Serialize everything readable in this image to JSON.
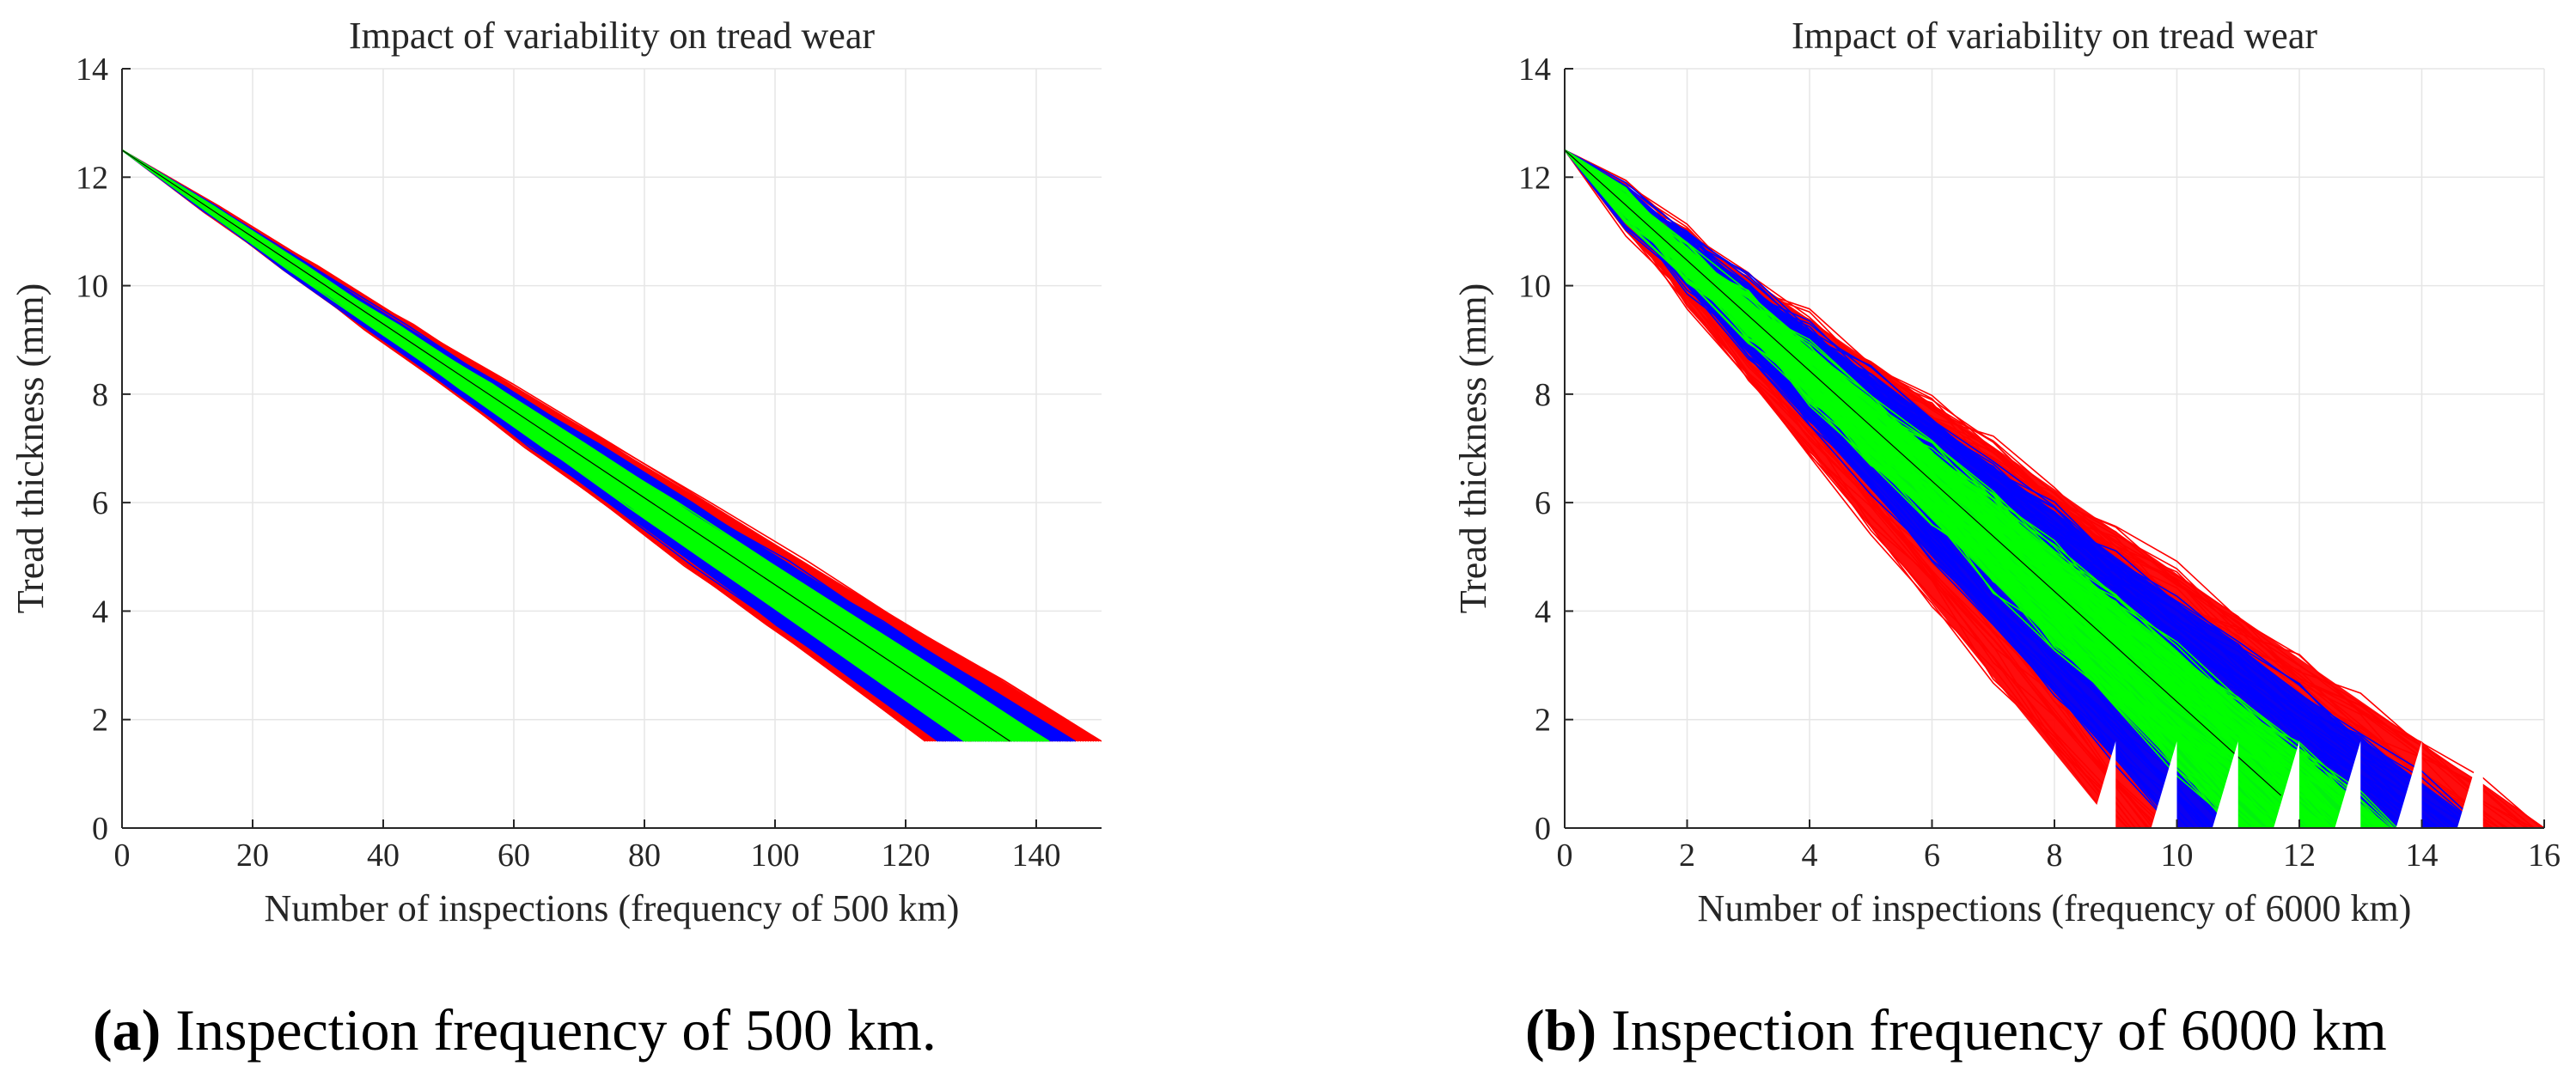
{
  "chart_data": [
    {
      "type": "line",
      "title": "Impact of variability on tread wear",
      "xlabel": "Number of inspections (frequency of 500 km)",
      "ylabel": "Tread thickness (mm)",
      "xlim": [
        0,
        150
      ],
      "ylim": [
        0,
        14
      ],
      "xticks": [
        0,
        20,
        40,
        60,
        80,
        100,
        120,
        140
      ],
      "yticks": [
        0,
        2,
        4,
        6,
        8,
        10,
        12,
        14
      ],
      "grid": true,
      "start_thickness": 12.5,
      "threshold": 1.6,
      "series": [
        {
          "name": "outer band",
          "color": "#ff0000",
          "x_end": [
            123,
            150
          ]
        },
        {
          "name": "middle band",
          "color": "#0000ff",
          "x_end": [
            125,
            146
          ]
        },
        {
          "name": "inner band",
          "color": "#00ff00",
          "x_end": [
            129,
            142
          ]
        },
        {
          "name": "mean",
          "color": "#000000",
          "x_end": [
            136,
            136
          ]
        }
      ],
      "caption_label": "(a)",
      "caption_text": "Inspection frequency of 500 km."
    },
    {
      "type": "line",
      "title": "Impact of variability on tread wear",
      "xlabel": "Number of inspections (frequency of 6000 km)",
      "ylabel": "Tread thickness (mm)",
      "xlim": [
        0,
        16
      ],
      "ylim": [
        0,
        14
      ],
      "xticks": [
        0,
        2,
        4,
        6,
        8,
        10,
        12,
        14,
        16
      ],
      "yticks": [
        0,
        2,
        4,
        6,
        8,
        10,
        12,
        14
      ],
      "grid": true,
      "start_thickness": 12.5,
      "drop_points": [
        9,
        10,
        11,
        12,
        13,
        14,
        15
      ],
      "series": [
        {
          "name": "outer band",
          "color": "#ff0000",
          "x_end": [
            9,
            16
          ]
        },
        {
          "name": "middle band",
          "color": "#0000ff",
          "x_end": [
            10,
            15
          ]
        },
        {
          "name": "inner band",
          "color": "#00ff00",
          "x_end": [
            11,
            13.5
          ]
        },
        {
          "name": "mean",
          "color": "#000000",
          "x_end": [
            11.7,
            11.7
          ]
        }
      ],
      "caption_label": "(b)",
      "caption_text": "Inspection frequency of 6000 km"
    }
  ]
}
